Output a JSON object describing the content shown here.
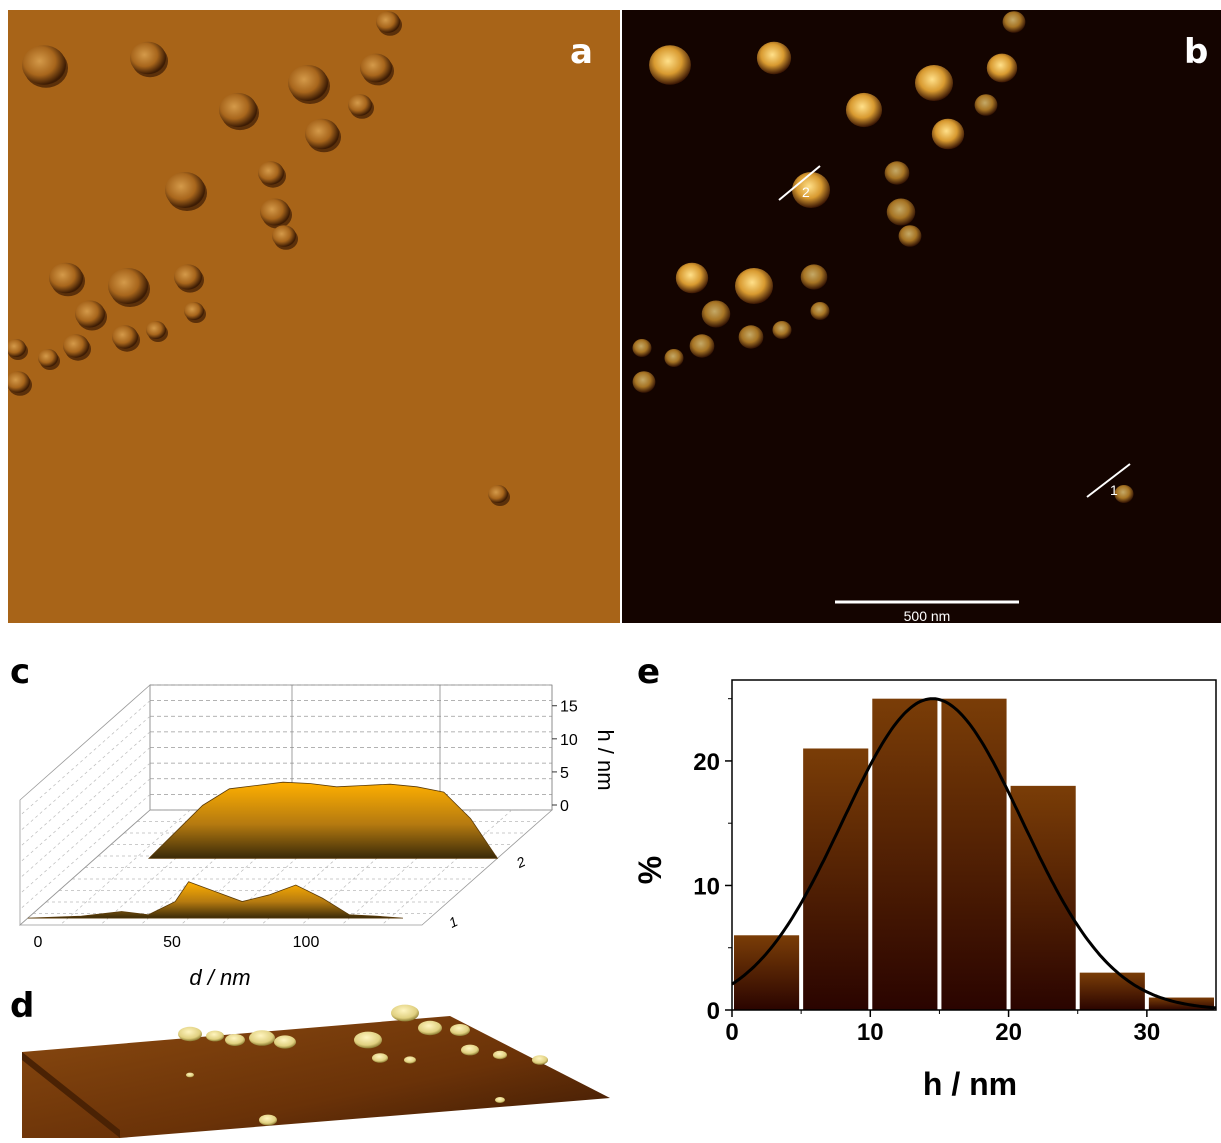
{
  "panels": {
    "a": {
      "label": "a"
    },
    "b": {
      "label": "b",
      "scale_bar": "500 nm",
      "profile_labels": [
        "2",
        "1"
      ]
    },
    "c": {
      "label": "c"
    },
    "d": {
      "label": "d"
    },
    "e": {
      "label": "e"
    }
  },
  "chart_data": [
    {
      "id": "c",
      "type": "area",
      "xlabel": "d / nm",
      "ylabel": "h / nm",
      "x_ticks": [
        "0",
        "50",
        "100"
      ],
      "y_ticks": [
        "0",
        "5",
        "10",
        "15"
      ],
      "depth_ticks": [
        "1",
        "2"
      ],
      "xlim": [
        0,
        150
      ],
      "ylim": [
        0,
        17
      ],
      "series": [
        {
          "name": "2",
          "x": [
            20,
            30,
            40,
            50,
            60,
            70,
            80,
            90,
            100,
            110,
            120,
            130,
            140,
            150
          ],
          "y": [
            0,
            4,
            8,
            10.5,
            11,
            11.5,
            11.3,
            10.8,
            11,
            11.2,
            10.8,
            10,
            6,
            0
          ]
        },
        {
          "name": "1",
          "x": [
            0,
            20,
            35,
            45,
            55,
            60,
            70,
            80,
            90,
            100,
            110,
            120,
            130,
            140
          ],
          "y": [
            0,
            0.3,
            1,
            0.5,
            2.5,
            5.5,
            4,
            2.5,
            3.5,
            5,
            3,
            0.5,
            0.3,
            0
          ]
        }
      ]
    },
    {
      "id": "e",
      "type": "bar",
      "xlabel": "h / nm",
      "ylabel": "%",
      "x_ticks": [
        "0",
        "10",
        "20",
        "30"
      ],
      "y_ticks": [
        "0",
        "10",
        "20"
      ],
      "xlim": [
        0,
        35
      ],
      "ylim": [
        0,
        26.5
      ],
      "bins": [
        [
          0,
          5
        ],
        [
          5,
          10
        ],
        [
          10,
          15
        ],
        [
          15,
          20
        ],
        [
          20,
          25
        ],
        [
          25,
          30
        ],
        [
          30,
          35
        ]
      ],
      "values": [
        6,
        21,
        25,
        25,
        18,
        3,
        1
      ],
      "fit": {
        "type": "gaussian",
        "mean": 14.5,
        "sigma": 6.5,
        "amplitude": 25
      }
    }
  ],
  "colors": {
    "bar_top": "#7a3d07",
    "bar_bottom": "#2a0400",
    "afm_amplitude": "#a86418",
    "afm_height": "#140400",
    "particle": "#f0b045"
  }
}
